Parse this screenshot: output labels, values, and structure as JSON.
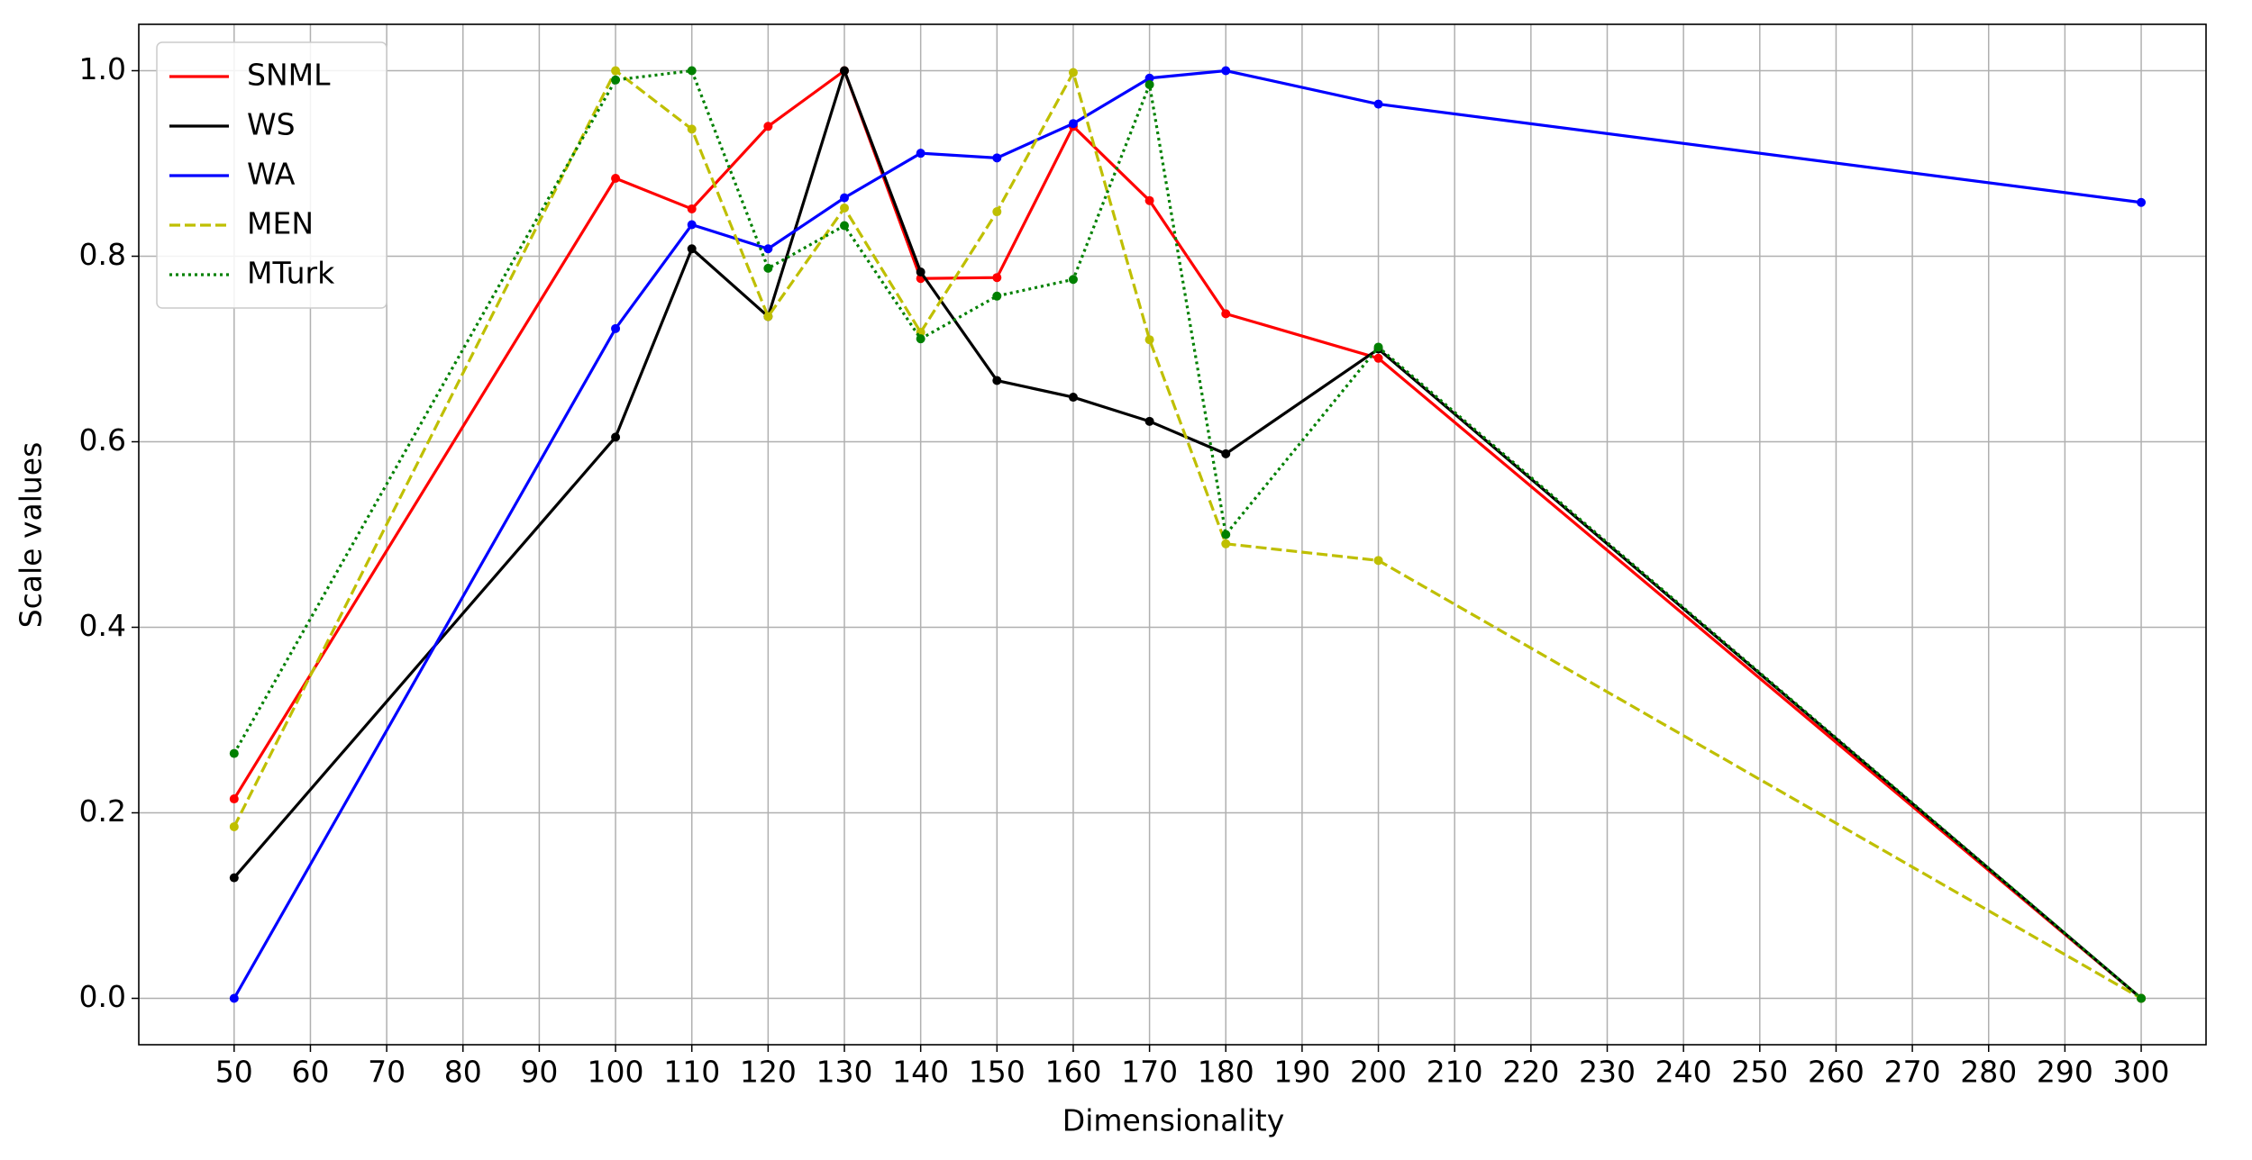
{
  "chart_data": {
    "type": "line",
    "xlabel": "Dimensionality",
    "ylabel": "Scale values",
    "x": [
      50,
      100,
      110,
      120,
      130,
      140,
      150,
      160,
      170,
      180,
      200,
      300
    ],
    "series": [
      {
        "name": "SNML",
        "color": "#ff0000",
        "style": "solid",
        "values": [
          0.215,
          0.884,
          0.851,
          0.94,
          1.0,
          0.776,
          0.777,
          0.94,
          0.86,
          0.738,
          0.69,
          0.0
        ]
      },
      {
        "name": "WS",
        "color": "#000000",
        "style": "solid",
        "values": [
          0.13,
          0.605,
          0.808,
          0.735,
          1.0,
          0.783,
          0.666,
          0.648,
          0.622,
          0.587,
          0.7,
          0.0
        ]
      },
      {
        "name": "WA",
        "color": "#0000ff",
        "style": "solid",
        "values": [
          0.0,
          0.722,
          0.834,
          0.808,
          0.863,
          0.911,
          0.906,
          0.943,
          0.992,
          1.0,
          0.964,
          0.858
        ]
      },
      {
        "name": "MEN",
        "color": "#bfbf00",
        "style": "dashed",
        "values": [
          0.185,
          1.0,
          0.937,
          0.735,
          0.852,
          0.718,
          0.848,
          0.998,
          0.71,
          0.49,
          0.472,
          0.0
        ]
      },
      {
        "name": "MTurk",
        "color": "#008000",
        "style": "dotted",
        "values": [
          0.264,
          0.99,
          1.0,
          0.787,
          0.833,
          0.711,
          0.757,
          0.775,
          0.985,
          0.5,
          0.702,
          0.0
        ]
      }
    ],
    "xlim": [
      37.5,
      308.5
    ],
    "ylim": [
      -0.05,
      1.05
    ],
    "xticks": [
      50,
      60,
      70,
      80,
      90,
      100,
      110,
      120,
      130,
      140,
      150,
      160,
      170,
      180,
      190,
      200,
      210,
      220,
      230,
      240,
      250,
      260,
      270,
      280,
      290,
      300
    ],
    "yticks": [
      {
        "value": 0,
        "label": "0.0"
      },
      {
        "value": 0.2,
        "label": "0.2"
      },
      {
        "value": 0.4,
        "label": "0.4"
      },
      {
        "value": 0.6,
        "label": "0.6"
      },
      {
        "value": 0.8,
        "label": "0.8"
      },
      {
        "value": 1,
        "label": "1.0"
      }
    ],
    "grid": true,
    "legend": "upper left"
  }
}
